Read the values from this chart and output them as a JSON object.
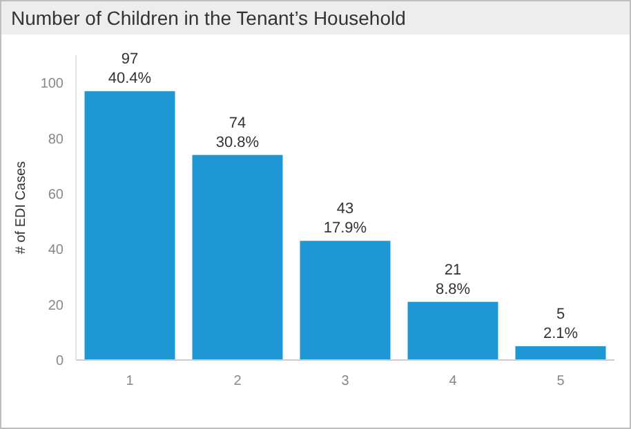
{
  "chart_data": {
    "type": "bar",
    "title": "Number of Children in the Tenant’s Household",
    "ylabel": "# of EDI Cases",
    "categories": [
      "1",
      "2",
      "3",
      "4",
      "5"
    ],
    "values": [
      97,
      74,
      43,
      21,
      5
    ],
    "value_labels": [
      "97\n40.4%",
      "74\n30.8%",
      "43\n17.9%",
      "21\n8.8%",
      "5\n2.1%"
    ],
    "color": "#1f97d4",
    "ylim": [
      0,
      110
    ],
    "yticks": [
      0,
      20,
      40,
      60,
      80,
      100
    ]
  }
}
